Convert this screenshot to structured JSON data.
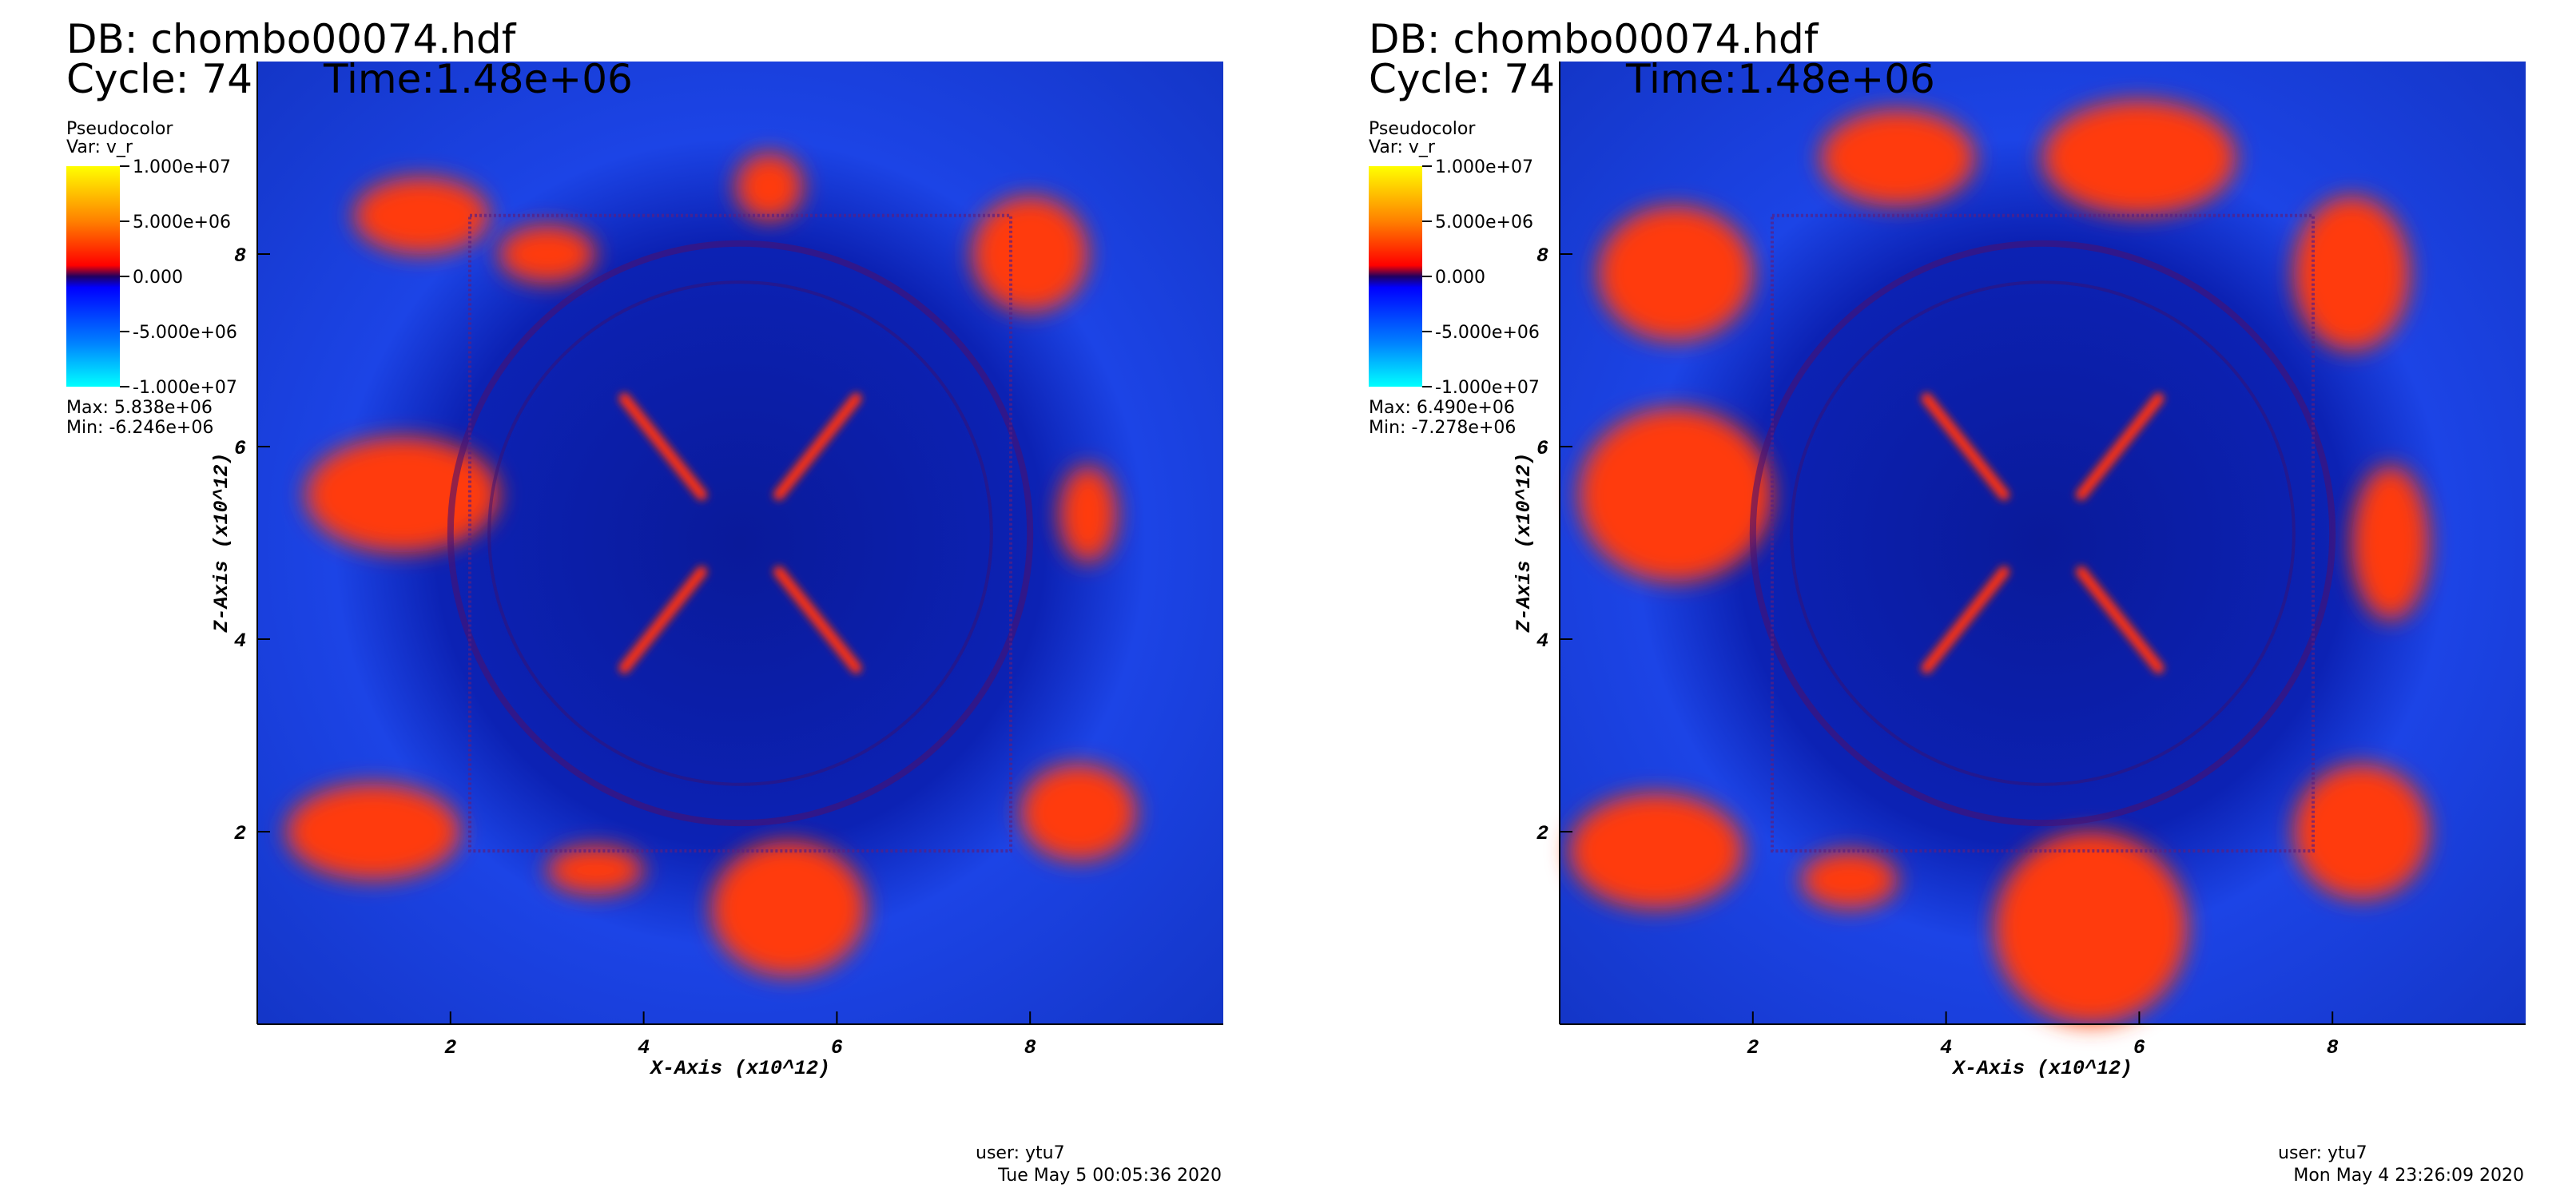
{
  "panels": [
    {
      "db": "DB: chombo00074.hdf",
      "cycle": "Cycle: 74",
      "time": "Time:1.48e+06",
      "legend": {
        "title": "Pseudocolor",
        "var": "Var: v_r",
        "ticks": [
          "1.000e+07",
          "5.000e+06",
          "0.000",
          "-5.000e+06",
          "-1.000e+07"
        ],
        "max": "Max:  5.838e+06",
        "min": "Min: -6.246e+06"
      },
      "x_axis": {
        "label": "X-Axis (x10^12)",
        "lim": [
          0,
          10
        ],
        "ticks": [
          2,
          4,
          6,
          8
        ]
      },
      "z_axis": {
        "label": "Z-Axis (x10^12)",
        "lim": [
          0,
          10
        ],
        "ticks": [
          2,
          4,
          6,
          8
        ]
      },
      "user": "user: ytu7",
      "date": "Tue May  5 00:05:36 2020"
    },
    {
      "db": "DB: chombo00074.hdf",
      "cycle": "Cycle: 74",
      "time": "Time:1.48e+06",
      "legend": {
        "title": "Pseudocolor",
        "var": "Var: v_r",
        "ticks": [
          "1.000e+07",
          "5.000e+06",
          "0.000",
          "-5.000e+06",
          "-1.000e+07"
        ],
        "max": "Max:  6.490e+06",
        "min": "Min: -7.278e+06"
      },
      "x_axis": {
        "label": "X-Axis (x10^12)",
        "lim": [
          0,
          10
        ],
        "ticks": [
          2,
          4,
          6,
          8
        ]
      },
      "z_axis": {
        "label": "Z-Axis (x10^12)",
        "lim": [
          0,
          10
        ],
        "ticks": [
          2,
          4,
          6,
          8
        ]
      },
      "user": "user: ytu7",
      "date": "Mon May  4 23:26:09 2020"
    }
  ]
}
